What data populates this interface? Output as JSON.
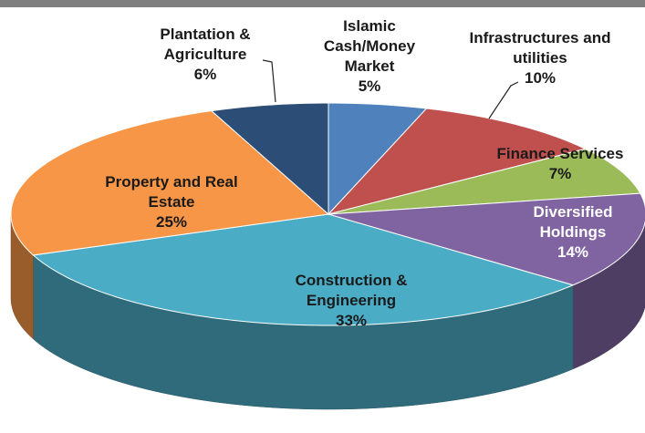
{
  "chart_data": {
    "type": "pie3d",
    "categories": [
      "Islamic Cash/Money Market",
      "Infrastructures and utilities",
      "Finance Services",
      "Diversified Holdings",
      "Construction & Engineering",
      "Property and Real Estate",
      "Plantation & Agriculture"
    ],
    "values": [
      5,
      10,
      7,
      14,
      33,
      25,
      6
    ],
    "value_labels": [
      "5%",
      "10%",
      "7%",
      "14%",
      "33%",
      "25%",
      "6%"
    ],
    "colors": [
      "#4f81bd",
      "#c0504d",
      "#9bbb59",
      "#8064a2",
      "#4bacc6",
      "#f79646",
      "#2c4d75"
    ]
  }
}
